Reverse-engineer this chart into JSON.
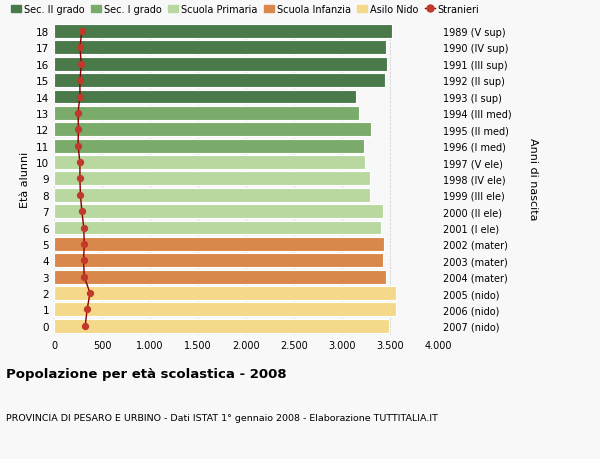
{
  "ages": [
    18,
    17,
    16,
    15,
    14,
    13,
    12,
    11,
    10,
    9,
    8,
    7,
    6,
    5,
    4,
    3,
    2,
    1,
    0
  ],
  "right_labels": [
    "1989 (V sup)",
    "1990 (IV sup)",
    "1991 (III sup)",
    "1992 (II sup)",
    "1993 (I sup)",
    "1994 (III med)",
    "1995 (II med)",
    "1996 (I med)",
    "1997 (V ele)",
    "1998 (IV ele)",
    "1999 (III ele)",
    "2000 (II ele)",
    "2001 (I ele)",
    "2002 (mater)",
    "2003 (mater)",
    "2004 (mater)",
    "2005 (nido)",
    "2006 (nido)",
    "2007 (nido)"
  ],
  "bar_values": [
    3520,
    3460,
    3470,
    3450,
    3150,
    3180,
    3300,
    3230,
    3240,
    3290,
    3290,
    3430,
    3410,
    3440,
    3430,
    3460,
    3560,
    3560,
    3490
  ],
  "bar_colors": [
    "#4a7a4a",
    "#4a7a4a",
    "#4a7a4a",
    "#4a7a4a",
    "#4a7a4a",
    "#7aab6a",
    "#7aab6a",
    "#7aab6a",
    "#b8d8a0",
    "#b8d8a0",
    "#b8d8a0",
    "#b8d8a0",
    "#b8d8a0",
    "#d9874a",
    "#d9874a",
    "#d9874a",
    "#f5d98a",
    "#f5d98a",
    "#f5d98a"
  ],
  "stranieri_values": [
    290,
    270,
    285,
    270,
    270,
    250,
    255,
    250,
    270,
    270,
    275,
    290,
    310,
    315,
    308,
    315,
    375,
    345,
    325
  ],
  "legend_labels": [
    "Sec. II grado",
    "Sec. I grado",
    "Scuola Primaria",
    "Scuola Infanzia",
    "Asilo Nido",
    "Stranieri"
  ],
  "legend_colors": [
    "#4a7a4a",
    "#7aab6a",
    "#b8d8a0",
    "#d9874a",
    "#f5d98a",
    "#c0392b"
  ],
  "ylabel_left": "Età alunni",
  "ylabel_right": "Anni di nascita",
  "title": "Popolazione per età scolastica - 2008",
  "subtitle": "PROVINCIA DI PESARO E URBINO - Dati ISTAT 1° gennaio 2008 - Elaborazione TUTTITALIA.IT",
  "xlim": [
    0,
    4000
  ],
  "xticks": [
    0,
    500,
    1000,
    1500,
    2000,
    2500,
    3000,
    3500,
    4000
  ],
  "background_color": "#f8f8f8",
  "bar_height": 0.85,
  "grid_color": "#cccccc"
}
